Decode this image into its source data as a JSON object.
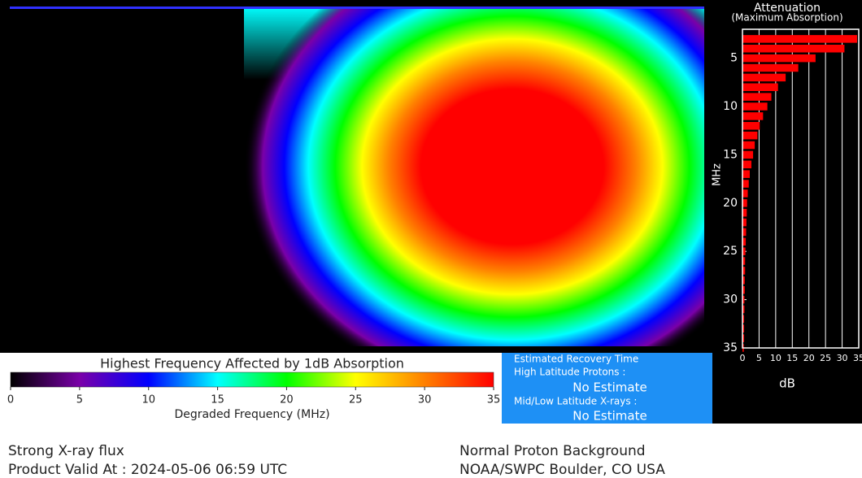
{
  "map": {
    "recovery": {
      "title": "Estimated Recovery Time",
      "high_latitude_label": "High Latitude Protons :",
      "high_latitude_value": "No Estimate",
      "mid_low_label": "Mid/Low Latitude X-rays :",
      "mid_low_value": "No Estimate"
    },
    "footer": {
      "left": [
        "Strong X-ray flux",
        "Product Valid At : 2024-05-06 06:59 UTC"
      ],
      "right": [
        "Normal Proton Background",
        "NOAA/SWPC Boulder, CO USA"
      ]
    }
  },
  "chart_data": [
    {
      "type": "colorbar",
      "title": "Highest Frequency Affected by 1dB Absorption",
      "xlabel": "Degraded Frequency (MHz)",
      "xlim": [
        0,
        35
      ],
      "xticks": [
        0,
        5,
        10,
        15,
        20,
        25,
        30,
        35
      ],
      "colors": [
        "#000000",
        "#7a00a8",
        "#0000ff",
        "#00ffff",
        "#00ff00",
        "#ffff00",
        "#ff8000",
        "#ff0000"
      ]
    },
    {
      "type": "bar",
      "orientation": "horizontal",
      "title": "Attenuation",
      "subtitle": "(Maximum Absorption)",
      "ylabel": "MHz",
      "xlabel": "dB",
      "color": "#ff0000",
      "grid": true,
      "categories": [
        3,
        4,
        5,
        6,
        7,
        8,
        9,
        10,
        11,
        12,
        13,
        14,
        15,
        16,
        17,
        18,
        19,
        20,
        21,
        22,
        23,
        24,
        25,
        26,
        27,
        28,
        29,
        30,
        31,
        32,
        33,
        34,
        35
      ],
      "values": [
        34.5,
        30.7,
        22,
        16.8,
        13,
        10.7,
        8.7,
        7.5,
        6.2,
        5.2,
        4.5,
        3.7,
        3.2,
        2.7,
        2.2,
        1.9,
        1.6,
        1.4,
        1.3,
        1.2,
        1.1,
        1.0,
        0.9,
        0.8,
        0.8,
        0.7,
        0.7,
        0.6,
        0.6,
        0.5,
        0.5,
        0.5,
        0.4
      ],
      "xlim": [
        0,
        35
      ],
      "xticks": [
        0,
        5,
        10,
        15,
        20,
        25,
        30,
        35
      ],
      "ylim": [
        2,
        35
      ],
      "yticks": [
        5,
        10,
        15,
        20,
        25,
        30,
        35
      ]
    }
  ]
}
